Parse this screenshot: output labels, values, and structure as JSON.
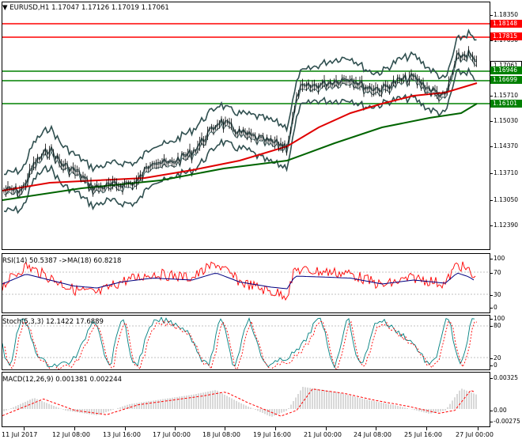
{
  "symbol_header": "EURUSD,H1  1.17047 1.17126 1.17019 1.17061",
  "price_axis": [
    "1.18350",
    "1.17650",
    "1.16370",
    "1.15710",
    "1.15030",
    "1.14370",
    "1.13710",
    "1.13050",
    "1.12390"
  ],
  "level_labels": {
    "l1": "1.18148",
    "l2": "1.17815",
    "l3": "1.17061",
    "l4": "1.16946",
    "l5": "1.16699",
    "l6": "1.16101"
  },
  "rsi": {
    "label": "RSI(14) 50.5387  ->MA(18) 60.8218",
    "axis": [
      "100",
      "70",
      "30",
      "0"
    ]
  },
  "stoch": {
    "label": "Stoch(5,3,3) 12.1422 17.6889",
    "axis": [
      "100",
      "80",
      "20",
      "0"
    ]
  },
  "macd": {
    "label": "MACD(12,26,9) 0.001381 0.002244",
    "axis": [
      "0.00325",
      "0.00",
      "-0.00275"
    ]
  },
  "time_axis": [
    "11 Jul 2017",
    "12 Jul 08:00",
    "13 Jul 16:00",
    "17 Jul 00:00",
    "18 Jul 08:00",
    "19 Jul 16:00",
    "21 Jul 00:00",
    "24 Jul 08:00",
    "25 Jul 16:00",
    "27 Jul 00:00"
  ],
  "colors": {
    "red_level": "#ff0000",
    "green_level": "#008000",
    "ma_red": "#e00000",
    "ma_green": "#006400",
    "bands": "#2f4f4f",
    "rsi_red": "#ff0000",
    "rsi_blue": "#000080",
    "stoch_main": "#008080",
    "macd_hist": "#c0c0c0"
  }
}
